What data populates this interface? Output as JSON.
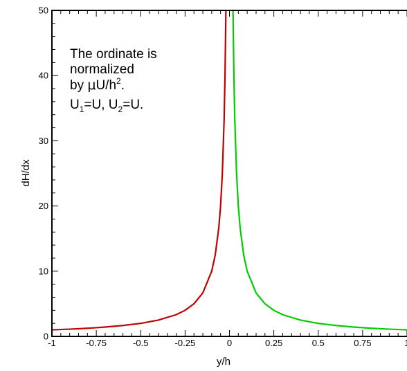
{
  "chart_data": {
    "type": "line",
    "xlabel": "y/h",
    "ylabel": "dH/dx",
    "xlim": [
      -1,
      1
    ],
    "ylim": [
      0,
      50
    ],
    "x_ticks": [
      -1,
      -0.75,
      -0.5,
      -0.25,
      0,
      0.25,
      0.5,
      0.75,
      1
    ],
    "x_tick_labels": [
      "-1",
      "-0.75",
      "-0.5",
      "-0.25",
      "0",
      "0.25",
      "0.5",
      "0.75",
      "1"
    ],
    "y_ticks": [
      0,
      10,
      20,
      30,
      40,
      50
    ],
    "y_tick_labels": [
      "0",
      "10",
      "20",
      "30",
      "40",
      "50"
    ],
    "grid": false,
    "annotation": {
      "line1": "The ordinate is",
      "line2": "normalized",
      "line3_prefix": "by ",
      "mu": "μ",
      "line3_mid": "U/h",
      "line3_sup": "2",
      "line3_end": ".",
      "line4_a": "U",
      "line4_sub1": "1",
      "line4_b": "=U, U",
      "line4_sub2": "2",
      "line4_c": "=U."
    },
    "series": [
      {
        "color": "#c00000",
        "x": [
          -1,
          -0.9,
          -0.8,
          -0.7,
          -0.6,
          -0.5,
          -0.4,
          -0.3,
          -0.25,
          -0.2,
          -0.15,
          -0.1,
          -0.08,
          -0.06,
          -0.05,
          -0.04,
          -0.03,
          -0.025,
          -0.02
        ],
        "y": [
          1.0,
          1.11,
          1.25,
          1.43,
          1.67,
          2.0,
          2.5,
          3.33,
          4.0,
          5.0,
          6.67,
          10.0,
          12.5,
          16.67,
          20.0,
          25.0,
          33.33,
          40.0,
          50.0
        ]
      },
      {
        "color": "#00cc00",
        "x": [
          0.02,
          0.025,
          0.03,
          0.04,
          0.05,
          0.06,
          0.08,
          0.1,
          0.15,
          0.2,
          0.25,
          0.3,
          0.4,
          0.5,
          0.6,
          0.7,
          0.8,
          0.9,
          1
        ],
        "y": [
          50.0,
          40.0,
          33.33,
          25.0,
          20.0,
          16.67,
          12.5,
          10.0,
          6.67,
          5.0,
          4.0,
          3.33,
          2.5,
          2.0,
          1.67,
          1.43,
          1.25,
          1.11,
          1.0
        ]
      }
    ]
  }
}
